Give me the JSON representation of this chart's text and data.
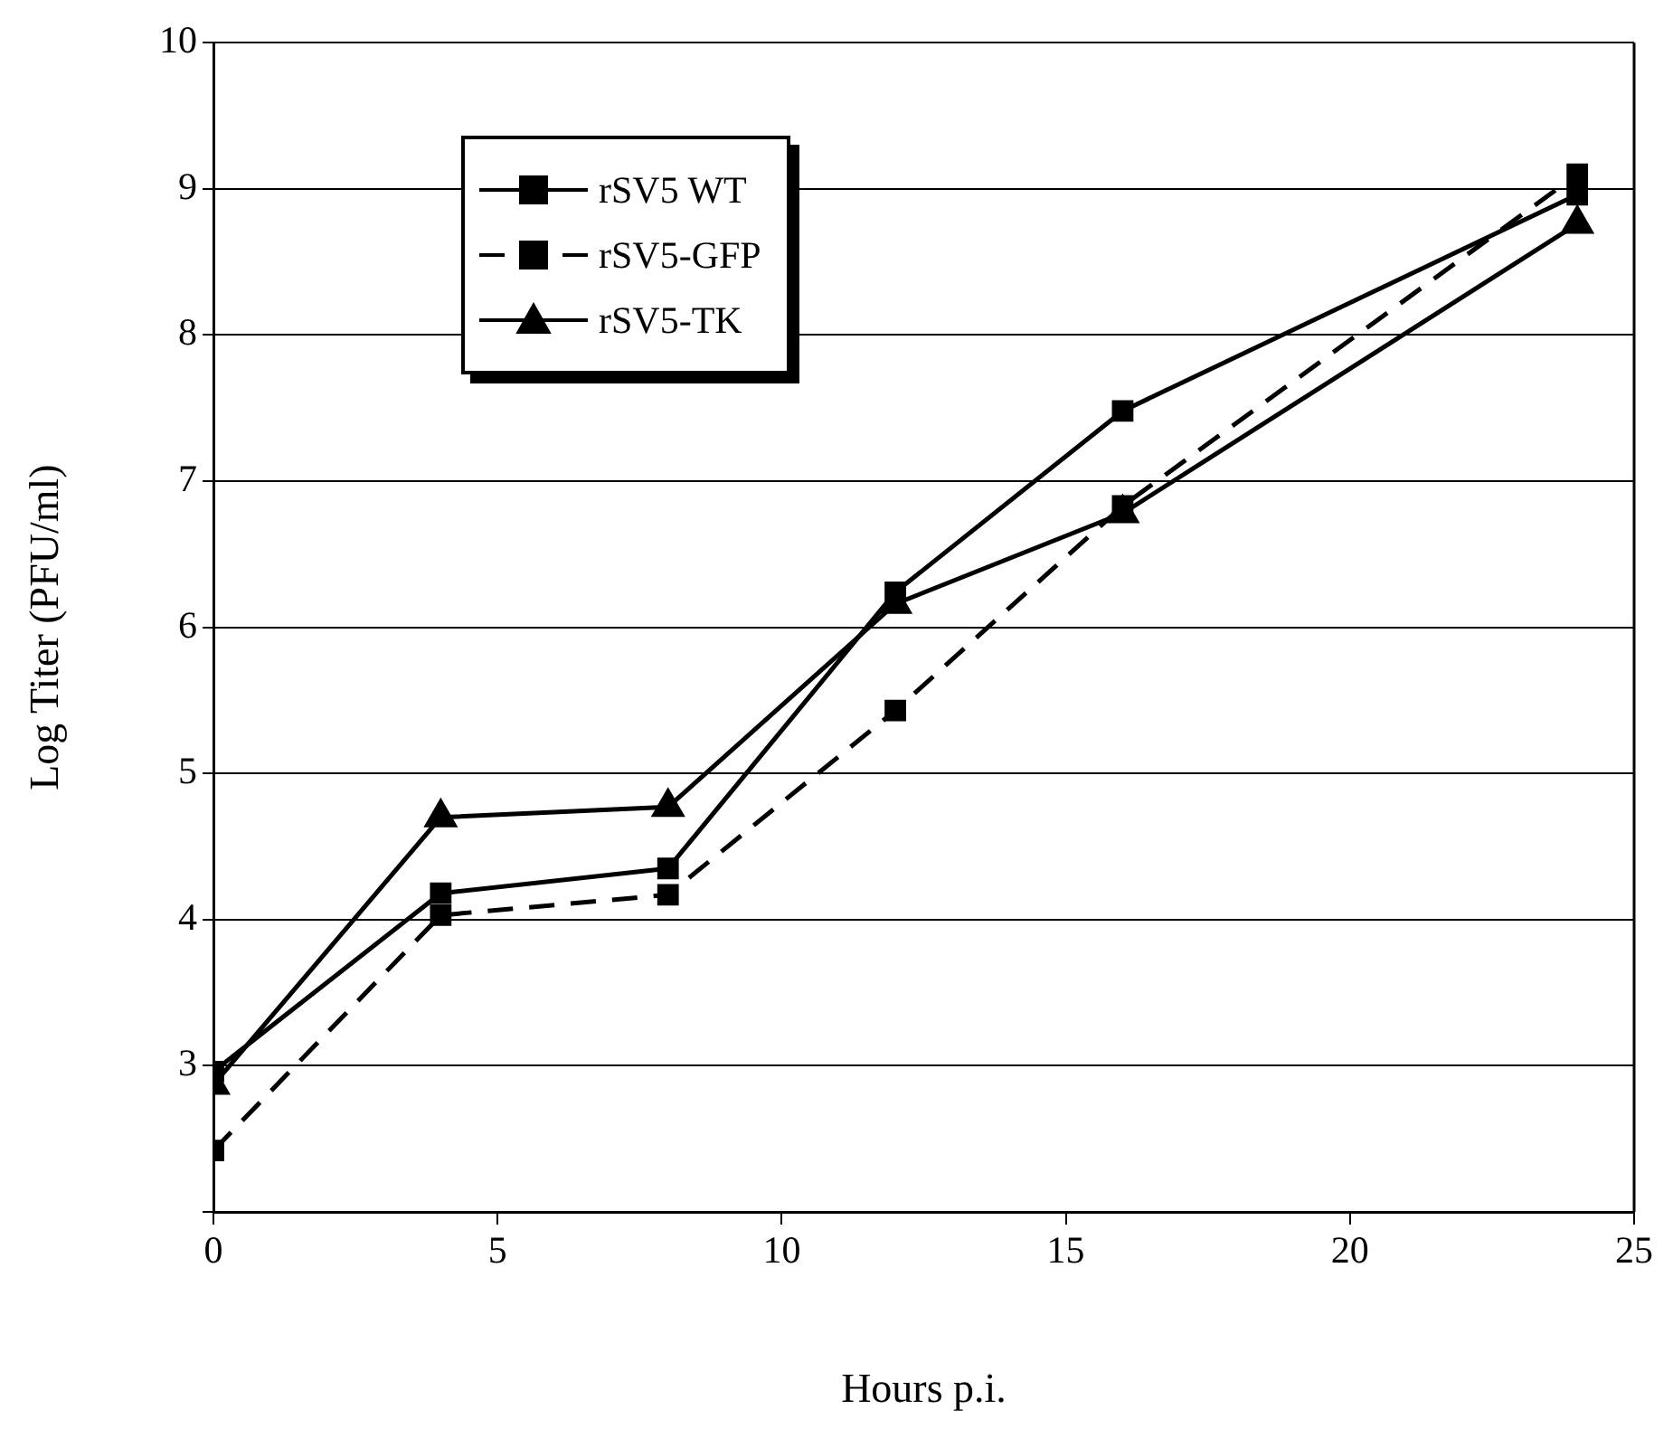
{
  "chart_data": {
    "type": "line",
    "xlabel": "Hours p.i.",
    "ylabel": "Log Titer (PFU/ml)",
    "x": [
      0,
      4,
      8,
      12,
      16,
      24
    ],
    "series": [
      {
        "name": "rSV5 WT",
        "color": "#000000",
        "marker": "square",
        "line_style": "solid",
        "values": [
          2.96,
          4.18,
          4.35,
          6.24,
          7.48,
          8.96
        ]
      },
      {
        "name": "rSV5-GFP",
        "color": "#000000",
        "marker": "square",
        "line_style": "dashed",
        "values": [
          2.42,
          4.03,
          4.17,
          5.43,
          6.83,
          9.1
        ]
      },
      {
        "name": "rSV5-TK",
        "color": "#000000",
        "marker": "triangle",
        "line_style": "solid",
        "values": [
          2.87,
          4.7,
          4.77,
          6.16,
          6.78,
          8.76
        ]
      }
    ],
    "xlim": [
      0,
      25
    ],
    "xticks": [
      0,
      5,
      10,
      15,
      20,
      25
    ],
    "ylim": [
      2,
      10
    ],
    "yticks": [
      {
        "value": 2,
        "label": null
      },
      3,
      4,
      5,
      6,
      7,
      8,
      9,
      10
    ],
    "grid": "y",
    "legend": "top left"
  }
}
